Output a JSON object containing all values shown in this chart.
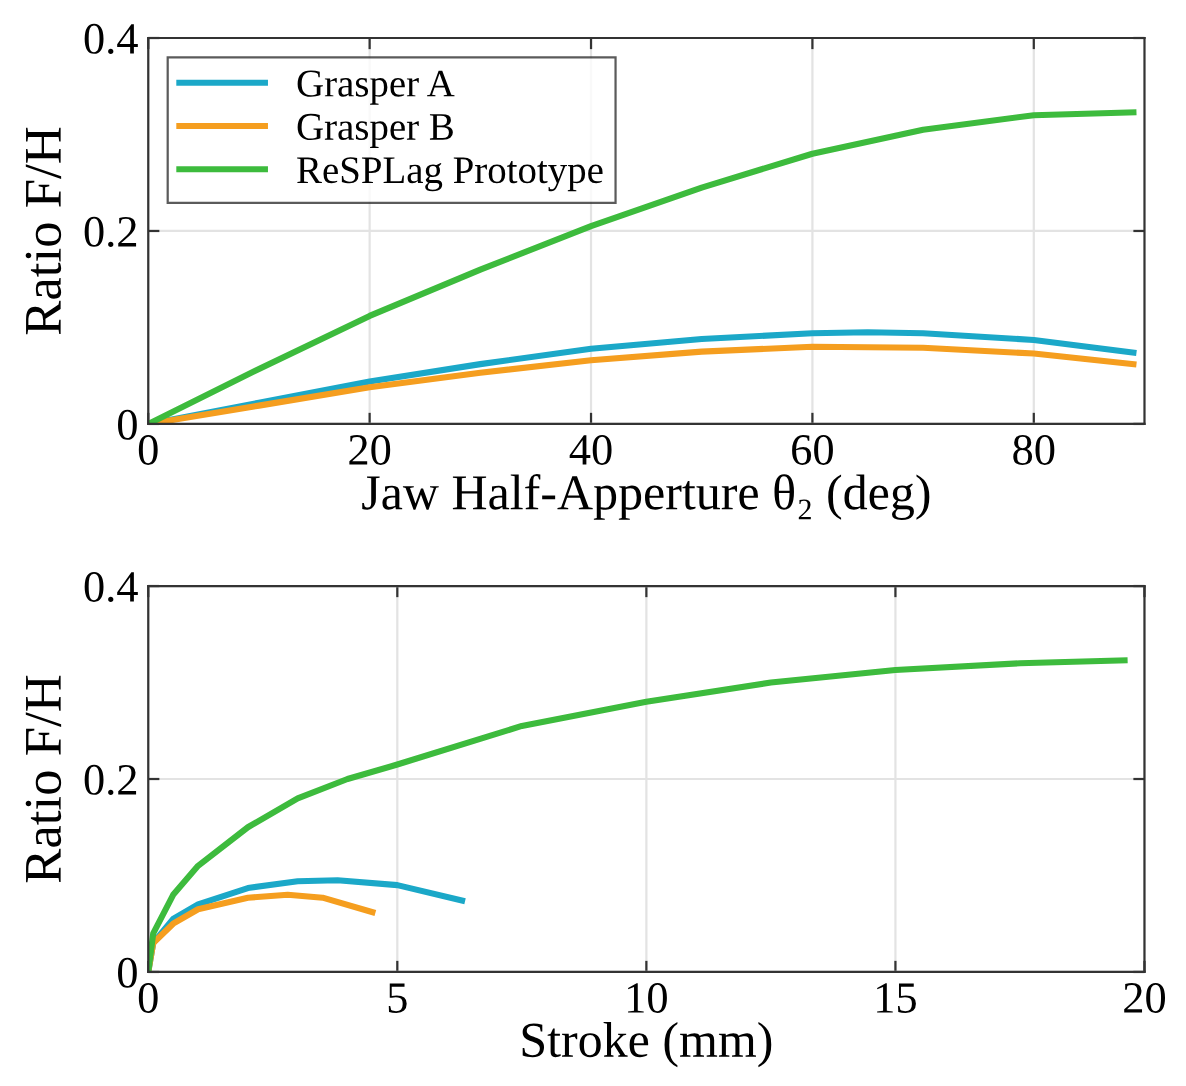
{
  "chart_data": [
    {
      "type": "line",
      "xlabel": "Jaw Half-Apperture θ₂ (deg)",
      "ylabel": "Ratio F/H",
      "xlim": [
        0,
        90
      ],
      "xticks": [
        0,
        20,
        40,
        60,
        80
      ],
      "ylim": [
        0,
        0.4
      ],
      "yticks": [
        0,
        0.2,
        0.4
      ],
      "grid": true,
      "legend": "top left",
      "line_style": "solid",
      "series": [
        {
          "name": "Grasper A",
          "color": "#1ba8c8",
          "x": [
            0,
            10,
            20,
            30,
            40,
            50,
            60,
            65,
            70,
            80,
            89
          ],
          "values": [
            0,
            0.022,
            0.044,
            0.062,
            0.078,
            0.088,
            0.094,
            0.095,
            0.094,
            0.087,
            0.074
          ]
        },
        {
          "name": "Grasper B",
          "color": "#f59e1f",
          "x": [
            0,
            10,
            20,
            30,
            40,
            50,
            60,
            70,
            80,
            89
          ],
          "values": [
            0,
            0.019,
            0.038,
            0.053,
            0.066,
            0.075,
            0.08,
            0.079,
            0.073,
            0.062
          ]
        },
        {
          "name": "ReSPLag Prototype",
          "color": "#3dbb3d",
          "x": [
            0,
            10,
            20,
            30,
            40,
            50,
            60,
            70,
            80,
            89
          ],
          "values": [
            0,
            0.057,
            0.112,
            0.16,
            0.205,
            0.245,
            0.28,
            0.305,
            0.32,
            0.323
          ]
        }
      ]
    },
    {
      "type": "line",
      "xlabel": "Stroke (mm)",
      "ylabel": "Ratio F/H",
      "xlim": [
        0,
        20
      ],
      "xticks": [
        0,
        5,
        10,
        15,
        20
      ],
      "ylim": [
        0,
        0.4
      ],
      "yticks": [
        0,
        0.2,
        0.4
      ],
      "grid": true,
      "line_style": "solid",
      "series": [
        {
          "color": "#1ba8c8",
          "x": [
            0,
            0.1,
            0.5,
            1,
            2,
            3,
            3.8,
            5,
            6.3
          ],
          "values": [
            0,
            0.03,
            0.055,
            0.07,
            0.087,
            0.094,
            0.095,
            0.09,
            0.074
          ]
        },
        {
          "color": "#f59e1f",
          "x": [
            0,
            0.1,
            0.5,
            1,
            2,
            2.8,
            3.5,
            4.5
          ],
          "values": [
            0,
            0.03,
            0.05,
            0.065,
            0.077,
            0.08,
            0.077,
            0.062
          ]
        },
        {
          "color": "#3dbb3d",
          "x": [
            0,
            0.1,
            0.5,
            1,
            2,
            3,
            4,
            5,
            7.5,
            10,
            12.5,
            15,
            17.5,
            19.6
          ],
          "values": [
            0,
            0.04,
            0.08,
            0.11,
            0.15,
            0.18,
            0.2,
            0.215,
            0.255,
            0.28,
            0.3,
            0.313,
            0.32,
            0.323
          ]
        }
      ]
    }
  ]
}
